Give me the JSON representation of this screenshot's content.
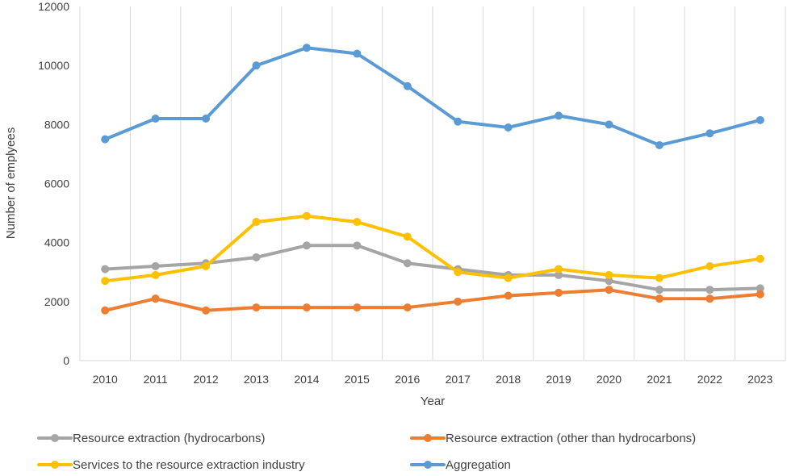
{
  "chart_data": {
    "type": "line",
    "title": "",
    "xlabel": "Year",
    "ylabel": "Number of emplyees",
    "x": [
      "2010",
      "2011",
      "2012",
      "2013",
      "2014",
      "2015",
      "2016",
      "2017",
      "2018",
      "2019",
      "2020",
      "2021",
      "2022",
      "2023"
    ],
    "ylim": [
      0,
      12000
    ],
    "yticks": [
      "0",
      "2000",
      "4000",
      "6000",
      "8000",
      "10000",
      "12000"
    ],
    "grid": "vertical",
    "legend_position": "bottom",
    "series": [
      {
        "name": "Resource extraction (hydrocarbons)",
        "color": "#a5a5a5",
        "values": [
          3100,
          3200,
          3300,
          3500,
          3900,
          3900,
          3300,
          3100,
          2900,
          2900,
          2700,
          2400,
          2400,
          2450
        ]
      },
      {
        "name": "Resource extraction (other than hydrocarbons)",
        "color": "#ed7d31",
        "values": [
          1700,
          2100,
          1700,
          1800,
          1800,
          1800,
          1800,
          2000,
          2200,
          2300,
          2400,
          2100,
          2100,
          2250
        ]
      },
      {
        "name": "Services to the resource extraction industry",
        "color": "#ffc000",
        "values": [
          2700,
          2900,
          3200,
          4700,
          4900,
          4700,
          4200,
          3000,
          2800,
          3100,
          2900,
          2800,
          3200,
          3450
        ]
      },
      {
        "name": "Aggregation",
        "color": "#5b9bd5",
        "values": [
          7500,
          8200,
          8200,
          10000,
          10600,
          10400,
          9300,
          8100,
          7900,
          8300,
          8000,
          7300,
          7700,
          8150
        ]
      }
    ]
  }
}
